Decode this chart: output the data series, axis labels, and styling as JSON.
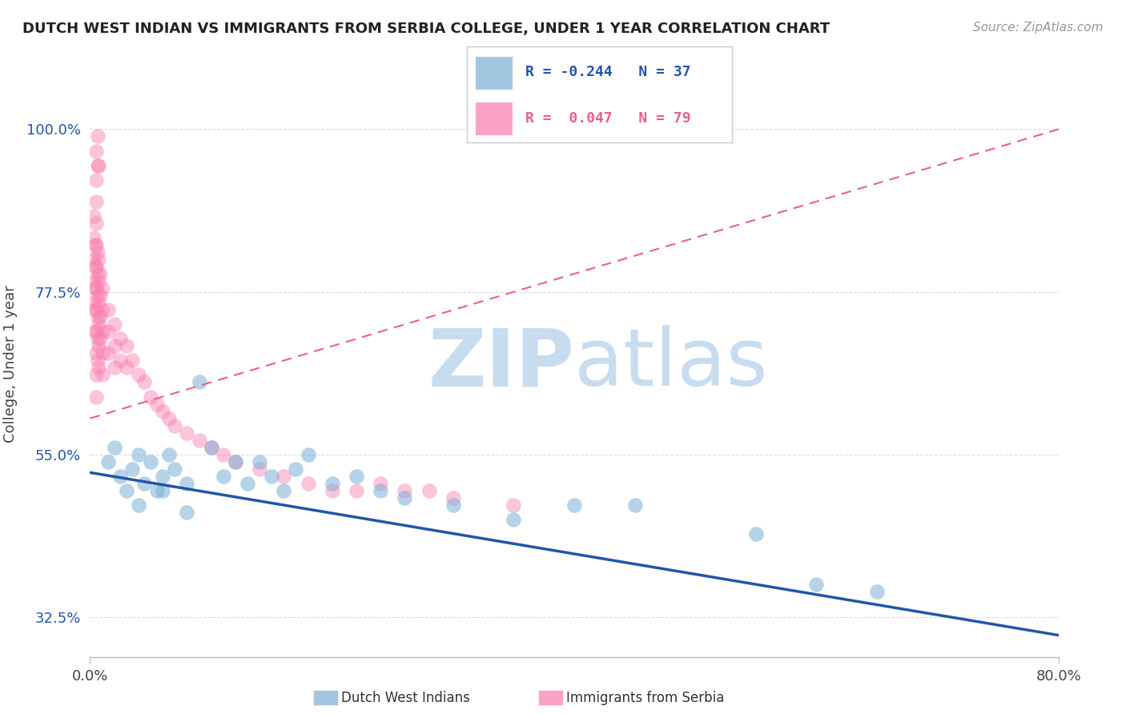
{
  "title": "DUTCH WEST INDIAN VS IMMIGRANTS FROM SERBIA COLLEGE, UNDER 1 YEAR CORRELATION CHART",
  "source_text": "Source: ZipAtlas.com",
  "ylabel": "College, Under 1 year",
  "xlim": [
    0.0,
    80.0
  ],
  "ylim": [
    27.0,
    108.0
  ],
  "yticks": [
    32.5,
    55.0,
    77.5,
    100.0
  ],
  "ytick_labels": [
    "32.5%",
    "55.0%",
    "77.5%",
    "100.0%"
  ],
  "xtick_labels": [
    "0.0%",
    "80.0%"
  ],
  "blue_label": "Dutch West Indians",
  "pink_label": "Immigrants from Serbia",
  "blue_R": -0.244,
  "blue_N": 37,
  "pink_R": 0.047,
  "pink_N": 79,
  "blue_color": "#7BAFD4",
  "pink_color": "#F97DAE",
  "blue_line_color": "#2255AA",
  "pink_line_color": "#E86090",
  "watermark_zip": "ZIP",
  "watermark_atlas": "atlas",
  "watermark_color": "#C8DCF0",
  "blue_trend_x": [
    0.0,
    80.0
  ],
  "blue_trend_y": [
    52.5,
    30.0
  ],
  "pink_trend_x": [
    0.0,
    80.0
  ],
  "pink_trend_y": [
    60.0,
    100.0
  ],
  "blue_dots_x": [
    1.5,
    2.0,
    2.5,
    3.0,
    3.5,
    4.0,
    4.5,
    5.0,
    5.5,
    6.0,
    6.5,
    7.0,
    8.0,
    9.0,
    10.0,
    11.0,
    12.0,
    13.0,
    14.0,
    15.0,
    16.0,
    17.0,
    18.0,
    20.0,
    22.0,
    24.0,
    26.0,
    30.0,
    35.0,
    40.0,
    45.0,
    55.0,
    60.0,
    65.0,
    4.0,
    6.0,
    8.0
  ],
  "blue_dots_y": [
    54.0,
    56.0,
    52.0,
    50.0,
    53.0,
    55.0,
    51.0,
    54.0,
    50.0,
    52.0,
    55.0,
    53.0,
    51.0,
    65.0,
    56.0,
    52.0,
    54.0,
    51.0,
    54.0,
    52.0,
    50.0,
    53.0,
    55.0,
    51.0,
    52.0,
    50.0,
    49.0,
    48.0,
    46.0,
    48.0,
    48.0,
    44.0,
    37.0,
    36.0,
    48.0,
    50.0,
    47.0
  ],
  "pink_dots_x": [
    0.3,
    0.3,
    0.3,
    0.3,
    0.3,
    0.4,
    0.4,
    0.4,
    0.4,
    0.4,
    0.5,
    0.5,
    0.5,
    0.5,
    0.5,
    0.5,
    0.5,
    0.5,
    0.5,
    0.5,
    0.6,
    0.6,
    0.6,
    0.6,
    0.6,
    0.6,
    0.7,
    0.7,
    0.7,
    0.7,
    0.7,
    0.7,
    0.8,
    0.8,
    0.8,
    0.8,
    1.0,
    1.0,
    1.0,
    1.0,
    1.0,
    1.5,
    1.5,
    1.5,
    2.0,
    2.0,
    2.0,
    2.5,
    2.5,
    3.0,
    3.0,
    3.5,
    4.0,
    4.5,
    5.0,
    5.5,
    6.0,
    6.5,
    7.0,
    8.0,
    9.0,
    10.0,
    11.0,
    12.0,
    14.0,
    16.0,
    18.0,
    20.0,
    22.0,
    24.0,
    26.0,
    28.0,
    30.0,
    35.0,
    0.5,
    0.6,
    0.5,
    0.6,
    0.7
  ],
  "pink_dots_y": [
    88.0,
    85.0,
    82.0,
    79.0,
    76.0,
    84.0,
    81.0,
    78.0,
    75.0,
    72.0,
    90.0,
    87.0,
    84.0,
    81.0,
    78.0,
    75.0,
    72.0,
    69.0,
    66.0,
    63.0,
    83.0,
    80.0,
    77.0,
    74.0,
    71.0,
    68.0,
    82.0,
    79.0,
    76.0,
    73.0,
    70.0,
    67.0,
    80.0,
    77.0,
    74.0,
    71.0,
    78.0,
    75.0,
    72.0,
    69.0,
    66.0,
    75.0,
    72.0,
    69.0,
    73.0,
    70.0,
    67.0,
    71.0,
    68.0,
    70.0,
    67.0,
    68.0,
    66.0,
    65.0,
    63.0,
    62.0,
    61.0,
    60.0,
    59.0,
    58.0,
    57.0,
    56.0,
    55.0,
    54.0,
    53.0,
    52.0,
    51.0,
    50.0,
    50.0,
    51.0,
    50.0,
    50.0,
    49.0,
    48.0,
    93.0,
    95.0,
    97.0,
    99.0,
    95.0
  ]
}
